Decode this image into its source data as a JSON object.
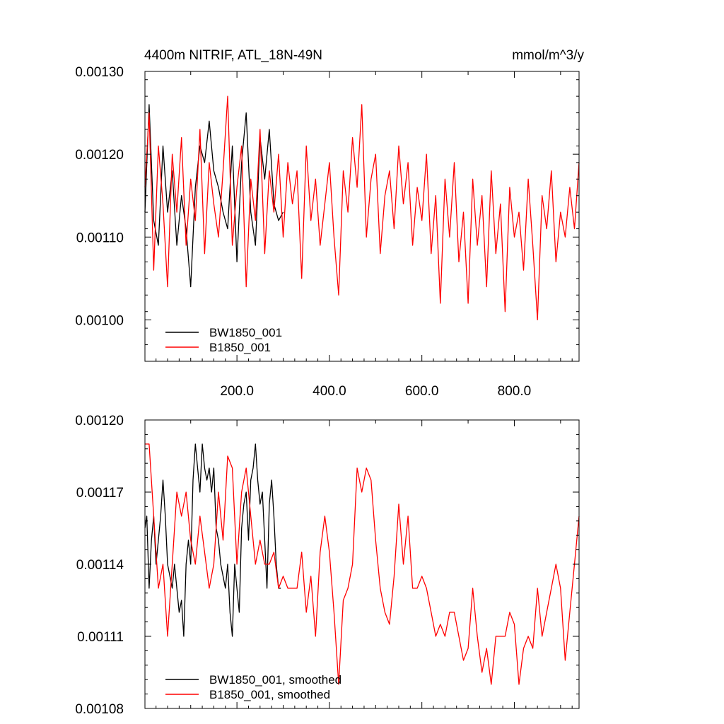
{
  "chart_data": [
    {
      "type": "line",
      "title": "4400m NITRIF, ATL_18N-49N",
      "units": "mmol/m^3/y",
      "xlabel": "",
      "ylabel": "",
      "xlim": [
        1,
        940
      ],
      "ylim": [
        0.00095,
        0.0013
      ],
      "grid": false,
      "legend_position": "bottom-left",
      "x_ticks": [
        200,
        400,
        600,
        800
      ],
      "x_tick_labels": [
        "200.0",
        "400.0",
        "600.0",
        "800.0"
      ],
      "y_ticks": [
        0.001,
        0.0011,
        0.0012,
        0.0013
      ],
      "y_tick_labels": [
        "0.00100",
        "0.00110",
        "0.00120",
        "0.00130"
      ],
      "series": [
        {
          "name": "BW1850_001",
          "color": "#000000",
          "x": [
            1,
            10,
            20,
            30,
            40,
            50,
            60,
            70,
            80,
            90,
            100,
            110,
            120,
            130,
            140,
            150,
            160,
            170,
            180,
            190,
            200,
            210,
            220,
            230,
            240,
            250,
            260,
            270,
            280,
            290,
            300
          ],
          "values": [
            0.00113,
            0.00126,
            0.00112,
            0.00109,
            0.00121,
            0.00113,
            0.00118,
            0.00109,
            0.00115,
            0.00111,
            0.00104,
            0.00116,
            0.00121,
            0.00119,
            0.00124,
            0.00118,
            0.00116,
            0.00113,
            0.00111,
            0.00121,
            0.00107,
            0.00119,
            0.00125,
            0.00113,
            0.00109,
            0.00122,
            0.00117,
            0.00123,
            0.00114,
            0.00112,
            0.00113
          ]
        },
        {
          "name": "B1850_001",
          "color": "#ff0000",
          "x": [
            1,
            10,
            20,
            30,
            40,
            50,
            60,
            70,
            80,
            90,
            100,
            110,
            120,
            130,
            140,
            150,
            160,
            170,
            180,
            190,
            200,
            210,
            220,
            230,
            240,
            250,
            260,
            270,
            280,
            290,
            300,
            310,
            320,
            330,
            340,
            350,
            360,
            370,
            380,
            390,
            400,
            410,
            420,
            430,
            440,
            450,
            460,
            470,
            480,
            490,
            500,
            510,
            520,
            530,
            540,
            550,
            560,
            570,
            580,
            590,
            600,
            610,
            620,
            630,
            640,
            650,
            660,
            670,
            680,
            690,
            700,
            710,
            720,
            730,
            740,
            750,
            760,
            770,
            780,
            790,
            800,
            810,
            820,
            830,
            840,
            850,
            860,
            870,
            880,
            890,
            900,
            910,
            920,
            930,
            940
          ],
          "values": [
            0.00116,
            0.00125,
            0.00106,
            0.00121,
            0.00114,
            0.00104,
            0.0012,
            0.00113,
            0.00122,
            0.00109,
            0.00117,
            0.00112,
            0.00123,
            0.00108,
            0.00119,
            0.00114,
            0.0011,
            0.00118,
            0.00127,
            0.00109,
            0.00116,
            0.00121,
            0.00104,
            0.00117,
            0.00112,
            0.00123,
            0.00108,
            0.00118,
            0.00113,
            0.0012,
            0.0011,
            0.00119,
            0.00114,
            0.00118,
            0.00105,
            0.00121,
            0.00112,
            0.00117,
            0.00109,
            0.00114,
            0.00119,
            0.0011,
            0.00103,
            0.00118,
            0.00113,
            0.00122,
            0.00116,
            0.00126,
            0.0011,
            0.00117,
            0.0012,
            0.00108,
            0.00115,
            0.00118,
            0.00111,
            0.00121,
            0.00114,
            0.00119,
            0.00109,
            0.00116,
            0.00112,
            0.0012,
            0.00108,
            0.00115,
            0.00102,
            0.00117,
            0.0011,
            0.00119,
            0.00107,
            0.00113,
            0.00102,
            0.00117,
            0.00109,
            0.00115,
            0.00104,
            0.00118,
            0.00108,
            0.00114,
            0.00101,
            0.00116,
            0.0011,
            0.00113,
            0.00106,
            0.00117,
            0.00109,
            0.001,
            0.00115,
            0.00111,
            0.00118,
            0.00107,
            0.00113,
            0.0011,
            0.00116,
            0.00111,
            0.00119
          ]
        }
      ]
    },
    {
      "type": "line",
      "title": "",
      "xlabel": "",
      "ylabel": "",
      "xlim": [
        1,
        940
      ],
      "ylim": [
        0.00108,
        0.0012
      ],
      "grid": false,
      "legend_position": "bottom-left",
      "x_ticks": [
        200,
        400,
        600,
        800
      ],
      "y_ticks": [
        0.00108,
        0.00111,
        0.00114,
        0.00117,
        0.0012
      ],
      "y_tick_labels": [
        "0.00108",
        "0.00111",
        "0.00114",
        "0.00117",
        "0.00120"
      ],
      "series": [
        {
          "name": "BW1850_001, smoothed",
          "color": "#000000",
          "x": [
            1,
            5,
            10,
            15,
            20,
            25,
            30,
            35,
            40,
            45,
            50,
            55,
            60,
            65,
            70,
            75,
            80,
            85,
            90,
            95,
            100,
            105,
            110,
            115,
            120,
            125,
            130,
            135,
            140,
            145,
            150,
            155,
            160,
            165,
            170,
            175,
            180,
            185,
            190,
            195,
            200,
            205,
            210,
            215,
            220,
            225,
            230,
            235,
            240,
            245,
            250,
            255,
            260,
            265,
            270,
            275,
            280,
            285,
            290,
            295
          ],
          "values": [
            0.001155,
            0.00116,
            0.00113,
            0.00115,
            0.00116,
            0.00114,
            0.00115,
            0.00116,
            0.001175,
            0.00116,
            0.00114,
            0.001135,
            0.00113,
            0.00114,
            0.00113,
            0.00112,
            0.001125,
            0.00111,
            0.00114,
            0.00115,
            0.00114,
            0.001175,
            0.00119,
            0.00118,
            0.00117,
            0.00119,
            0.00118,
            0.001175,
            0.00118,
            0.00117,
            0.00118,
            0.001155,
            0.00115,
            0.00114,
            0.001135,
            0.00113,
            0.00114,
            0.00112,
            0.00111,
            0.00114,
            0.00113,
            0.00112,
            0.001155,
            0.001165,
            0.00117,
            0.00115,
            0.001175,
            0.00118,
            0.00119,
            0.001175,
            0.001165,
            0.00117,
            0.00115,
            0.00113,
            0.001165,
            0.001175,
            0.00116,
            0.00114,
            0.00113,
            0.00113
          ]
        },
        {
          "name": "B1850_001, smoothed",
          "color": "#ff0000",
          "x": [
            1,
            10,
            20,
            30,
            40,
            50,
            60,
            70,
            80,
            90,
            100,
            110,
            120,
            130,
            140,
            150,
            160,
            170,
            180,
            190,
            200,
            210,
            220,
            230,
            240,
            250,
            260,
            270,
            280,
            290,
            300,
            310,
            320,
            330,
            340,
            350,
            360,
            370,
            380,
            390,
            400,
            410,
            420,
            430,
            440,
            450,
            460,
            470,
            480,
            490,
            500,
            510,
            520,
            530,
            540,
            550,
            560,
            570,
            580,
            590,
            600,
            610,
            620,
            630,
            640,
            650,
            660,
            670,
            680,
            690,
            700,
            710,
            720,
            730,
            740,
            750,
            760,
            770,
            780,
            790,
            800,
            810,
            820,
            830,
            840,
            850,
            860,
            870,
            880,
            890,
            900,
            910,
            920,
            930,
            940
          ],
          "values": [
            0.00119,
            0.00119,
            0.00116,
            0.00113,
            0.00114,
            0.00111,
            0.00114,
            0.00117,
            0.00116,
            0.00117,
            0.00115,
            0.00114,
            0.00116,
            0.001145,
            0.00113,
            0.00114,
            0.00117,
            0.00115,
            0.001185,
            0.00118,
            0.00114,
            0.00117,
            0.00118,
            0.00116,
            0.00114,
            0.00115,
            0.00114,
            0.00114,
            0.001145,
            0.00113,
            0.001135,
            0.00113,
            0.00113,
            0.00113,
            0.001145,
            0.00112,
            0.001135,
            0.00111,
            0.001145,
            0.00116,
            0.001145,
            0.00112,
            0.00109,
            0.001125,
            0.00113,
            0.00114,
            0.00118,
            0.00117,
            0.00118,
            0.001175,
            0.00115,
            0.00113,
            0.00112,
            0.001115,
            0.001135,
            0.001165,
            0.00114,
            0.00116,
            0.00113,
            0.00113,
            0.001135,
            0.00113,
            0.00112,
            0.00111,
            0.001115,
            0.00111,
            0.00112,
            0.00112,
            0.00111,
            0.0011,
            0.001105,
            0.00113,
            0.00111,
            0.001095,
            0.001105,
            0.00109,
            0.00111,
            0.00111,
            0.00111,
            0.00112,
            0.001115,
            0.00109,
            0.001105,
            0.00111,
            0.001105,
            0.00113,
            0.00111,
            0.00112,
            0.00113,
            0.00114,
            0.00113,
            0.0011,
            0.00112,
            0.00114,
            0.00116
          ]
        }
      ]
    }
  ]
}
